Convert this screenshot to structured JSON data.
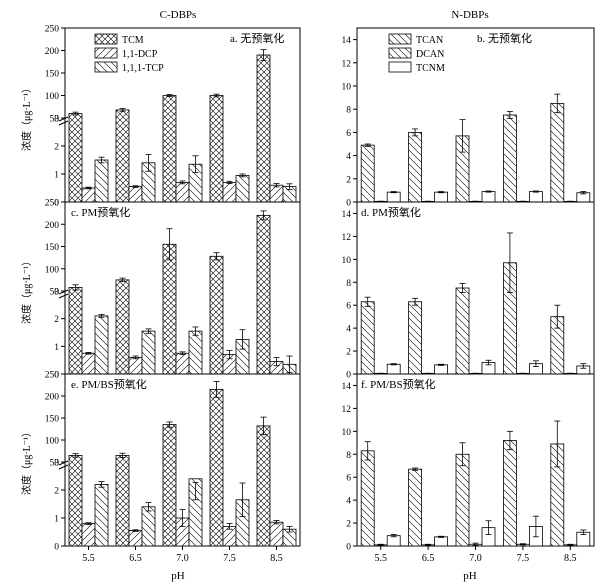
{
  "page": {
    "left_header": "C-DBPs",
    "right_header": "N-DBPs",
    "ylabel": "浓度（μg·L⁻¹）",
    "xlabel": "pH"
  },
  "chart_data": [
    {
      "type": "bar",
      "id": "a",
      "title": "a. 无预氧化",
      "categories": [
        "5.5",
        "6.5",
        "7.0",
        "7.5",
        "8.5"
      ],
      "series": [
        {
          "name": "TCM",
          "values": [
            60,
            68,
            100,
            100,
            190
          ],
          "errors": [
            3,
            3,
            2,
            3,
            12
          ]
        },
        {
          "name": "1,1-DCP",
          "values": [
            0.5,
            0.55,
            0.7,
            0.7,
            0.6
          ],
          "errors": [
            0.03,
            0.03,
            0.05,
            0.04,
            0.06
          ]
        },
        {
          "name": "1,1,1-TCP",
          "values": [
            1.5,
            1.4,
            1.35,
            0.95,
            0.55
          ],
          "errors": [
            0.1,
            0.3,
            0.3,
            0.05,
            0.1
          ]
        }
      ],
      "legend": [
        "TCM",
        "1,1-DCP",
        "1,1,1-TCP"
      ],
      "ylim_lower": [
        0,
        3
      ],
      "ylim_upper": [
        50,
        250
      ],
      "yticks_lower": [
        "0",
        "1",
        "2",
        "3"
      ],
      "yticks_upper": [
        "50",
        "100",
        "150",
        "200",
        "250"
      ]
    },
    {
      "type": "bar",
      "id": "b",
      "title": "b. 无预氧化",
      "categories": [
        "5.5",
        "6.5",
        "7.0",
        "7.5",
        "8.5"
      ],
      "series": [
        {
          "name": "TCAN",
          "values": [
            4.9,
            6.0,
            5.7,
            7.5,
            8.5
          ],
          "errors": [
            0.1,
            0.3,
            1.4,
            0.3,
            0.8
          ]
        },
        {
          "name": "DCAN",
          "values": [
            0.05,
            0.05,
            0.05,
            0.05,
            0.05
          ],
          "errors": [
            0.02,
            0.02,
            0.02,
            0.02,
            0.02
          ]
        },
        {
          "name": "TCNM",
          "values": [
            0.85,
            0.85,
            0.9,
            0.9,
            0.8
          ],
          "errors": [
            0.05,
            0.05,
            0.05,
            0.05,
            0.1
          ]
        }
      ],
      "legend": [
        "TCAN",
        "DCAN",
        "TCNM"
      ],
      "ylim": [
        0,
        15
      ],
      "yticks": [
        "0",
        "2",
        "4",
        "6",
        "8",
        "10",
        "12",
        "14"
      ]
    },
    {
      "type": "bar",
      "id": "c",
      "title": "c. PM预氧化",
      "categories": [
        "5.5",
        "6.5",
        "7.0",
        "7.5",
        "8.5"
      ],
      "series": [
        {
          "name": "TCM",
          "values": [
            58,
            75,
            155,
            128,
            220
          ],
          "errors": [
            6,
            4,
            35,
            8,
            10
          ]
        },
        {
          "name": "1,1-DCP",
          "values": [
            0.75,
            0.6,
            0.75,
            0.7,
            0.45
          ],
          "errors": [
            0.03,
            0.05,
            0.05,
            0.15,
            0.15
          ]
        },
        {
          "name": "1,1,1-TCP",
          "values": [
            2.1,
            1.55,
            1.55,
            1.25,
            0.35
          ],
          "errors": [
            0.05,
            0.08,
            0.15,
            0.35,
            0.3
          ]
        }
      ],
      "legend": [],
      "ylim_lower": [
        0,
        3
      ],
      "ylim_upper": [
        50,
        250
      ],
      "yticks_lower": [
        "0",
        "1",
        "2",
        "3"
      ],
      "yticks_upper": [
        "50",
        "100",
        "150",
        "200",
        "250"
      ]
    },
    {
      "type": "bar",
      "id": "d",
      "title": "d. PM预氧化",
      "categories": [
        "5.5",
        "6.5",
        "7.0",
        "7.5",
        "8.5"
      ],
      "series": [
        {
          "name": "TCAN",
          "values": [
            6.3,
            6.3,
            7.5,
            9.7,
            5.0
          ],
          "errors": [
            0.4,
            0.3,
            0.4,
            2.6,
            1.0
          ]
        },
        {
          "name": "DCAN",
          "values": [
            0.05,
            0.05,
            0.05,
            0.05,
            0.05
          ],
          "errors": [
            0.02,
            0.02,
            0.02,
            0.02,
            0.02
          ]
        },
        {
          "name": "TCNM",
          "values": [
            0.85,
            0.8,
            1.0,
            0.9,
            0.7
          ],
          "errors": [
            0.05,
            0.05,
            0.2,
            0.25,
            0.2
          ]
        }
      ],
      "legend": [],
      "ylim": [
        0,
        15
      ],
      "yticks": [
        "0",
        "2",
        "4",
        "6",
        "8",
        "10",
        "12",
        "14"
      ]
    },
    {
      "type": "bar",
      "id": "e",
      "title": "e. PM/BS预氧化",
      "categories": [
        "5.5",
        "6.5",
        "7.0",
        "7.5",
        "8.5"
      ],
      "series": [
        {
          "name": "TCM",
          "values": [
            65,
            65,
            135,
            215,
            132
          ],
          "errors": [
            4,
            5,
            6,
            18,
            20
          ]
        },
        {
          "name": "1,1-DCP",
          "values": [
            0.8,
            0.55,
            1.0,
            0.7,
            0.85
          ],
          "errors": [
            0.03,
            0.03,
            0.3,
            0.1,
            0.06
          ]
        },
        {
          "name": "1,1,1-TCP",
          "values": [
            2.2,
            1.4,
            2.4,
            1.65,
            0.6
          ],
          "errors": [
            0.1,
            0.15,
            0.75,
            0.6,
            0.1
          ]
        }
      ],
      "legend": [],
      "ylim_lower": [
        0,
        3
      ],
      "ylim_upper": [
        50,
        250
      ],
      "yticks_lower": [
        "0",
        "1",
        "2",
        "3"
      ],
      "yticks_upper": [
        "50",
        "100",
        "150",
        "200",
        "250"
      ]
    },
    {
      "type": "bar",
      "id": "f",
      "title": "f. PM/BS预氧化",
      "categories": [
        "5.5",
        "6.5",
        "7.0",
        "7.5",
        "8.5"
      ],
      "series": [
        {
          "name": "TCAN",
          "values": [
            8.3,
            6.7,
            8.0,
            9.2,
            8.9
          ],
          "errors": [
            0.8,
            0.1,
            1.0,
            0.8,
            2.0
          ]
        },
        {
          "name": "DCAN",
          "values": [
            0.1,
            0.1,
            0.15,
            0.15,
            0.1
          ],
          "errors": [
            0.05,
            0.05,
            0.1,
            0.05,
            0.05
          ]
        },
        {
          "name": "TCNM",
          "values": [
            0.9,
            0.8,
            1.6,
            1.7,
            1.2
          ],
          "errors": [
            0.1,
            0.05,
            0.6,
            0.9,
            0.2
          ]
        }
      ],
      "legend": [],
      "ylim": [
        0,
        15
      ],
      "yticks": [
        "0",
        "2",
        "4",
        "6",
        "8",
        "10",
        "12",
        "14"
      ]
    }
  ]
}
